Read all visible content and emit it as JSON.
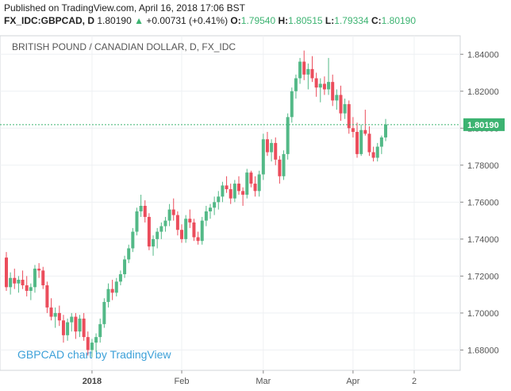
{
  "header": {
    "published": "Published on TradingView.com, April 16, 2018 17:06 BST",
    "symbol": "FX_IDC:GBPCAD, D",
    "last": "1.80190",
    "arrow": "▲",
    "change": "+0.00731 (+0.41%)",
    "o_label": "O:",
    "o_value": "1.79540",
    "h_label": "H:",
    "h_value": "1.80515",
    "l_label": "L:",
    "l_value": "1.79334",
    "c_label": "C:",
    "c_value": "1.80190"
  },
  "chart_data": {
    "type": "candlestick",
    "title": "BRITISH POUND / CANADIAN DOLLAR, D, FX_IDC",
    "watermark": "GBPCAD chart by TradingView",
    "last_price": 1.8019,
    "last_price_label": "1.80190",
    "y_ticks": [
      "1.84000",
      "1.82000",
      "1.80000",
      "1.78000",
      "1.76000",
      "1.74000",
      "1.72000",
      "1.70000",
      "1.68000"
    ],
    "y_tick_values": [
      1.84,
      1.82,
      1.8,
      1.78,
      1.76,
      1.74,
      1.72,
      1.7,
      1.68
    ],
    "ylim": [
      1.669,
      1.85
    ],
    "x_ticks": [
      {
        "label": "2018",
        "index": 21,
        "bold": true
      },
      {
        "label": "Feb",
        "index": 43,
        "bold": false
      },
      {
        "label": "Mar",
        "index": 63,
        "bold": false
      },
      {
        "label": "Apr",
        "index": 85,
        "bold": false
      },
      {
        "label": "2",
        "index": 100,
        "bold": false
      }
    ],
    "colors": {
      "up": "#53b987",
      "down": "#eb4d5c",
      "grid": "#eef0f3",
      "axis": "#d0d4d9",
      "last_line": "#3cb371"
    },
    "candles": [
      [
        1.73,
        1.733,
        1.712,
        1.714
      ],
      [
        1.714,
        1.722,
        1.71,
        1.719
      ],
      [
        1.719,
        1.724,
        1.713,
        1.716
      ],
      [
        1.716,
        1.72,
        1.711,
        1.718
      ],
      [
        1.718,
        1.723,
        1.713,
        1.715
      ],
      [
        1.715,
        1.72,
        1.709,
        1.712
      ],
      [
        1.712,
        1.716,
        1.707,
        1.714
      ],
      [
        1.714,
        1.726,
        1.711,
        1.724
      ],
      [
        1.724,
        1.727,
        1.719,
        1.723
      ],
      [
        1.723,
        1.725,
        1.713,
        1.715
      ],
      [
        1.715,
        1.717,
        1.7,
        1.703
      ],
      [
        1.703,
        1.708,
        1.696,
        1.698
      ],
      [
        1.698,
        1.703,
        1.692,
        1.7
      ],
      [
        1.7,
        1.704,
        1.693,
        1.696
      ],
      [
        1.696,
        1.699,
        1.684,
        1.688
      ],
      [
        1.688,
        1.697,
        1.685,
        1.695
      ],
      [
        1.695,
        1.7,
        1.69,
        1.698
      ],
      [
        1.698,
        1.7,
        1.686,
        1.69
      ],
      [
        1.69,
        1.699,
        1.687,
        1.697
      ],
      [
        1.697,
        1.7,
        1.685,
        1.687
      ],
      [
        1.687,
        1.69,
        1.677,
        1.68
      ],
      [
        1.68,
        1.686,
        1.676,
        1.684
      ],
      [
        1.684,
        1.689,
        1.679,
        1.687
      ],
      [
        1.687,
        1.697,
        1.684,
        1.694
      ],
      [
        1.694,
        1.708,
        1.692,
        1.706
      ],
      [
        1.706,
        1.716,
        1.703,
        1.713
      ],
      [
        1.713,
        1.718,
        1.707,
        1.711
      ],
      [
        1.711,
        1.719,
        1.709,
        1.717
      ],
      [
        1.717,
        1.723,
        1.715,
        1.721
      ],
      [
        1.721,
        1.731,
        1.719,
        1.729
      ],
      [
        1.729,
        1.737,
        1.727,
        1.735
      ],
      [
        1.735,
        1.746,
        1.733,
        1.744
      ],
      [
        1.744,
        1.757,
        1.742,
        1.755
      ],
      [
        1.755,
        1.764,
        1.752,
        1.758
      ],
      [
        1.758,
        1.761,
        1.749,
        1.752
      ],
      [
        1.752,
        1.754,
        1.734,
        1.736
      ],
      [
        1.736,
        1.742,
        1.731,
        1.74
      ],
      [
        1.74,
        1.746,
        1.735,
        1.744
      ],
      [
        1.744,
        1.749,
        1.74,
        1.747
      ],
      [
        1.747,
        1.752,
        1.744,
        1.75
      ],
      [
        1.75,
        1.759,
        1.747,
        1.756
      ],
      [
        1.756,
        1.762,
        1.75,
        1.753
      ],
      [
        1.753,
        1.755,
        1.742,
        1.745
      ],
      [
        1.745,
        1.748,
        1.738,
        1.74
      ],
      [
        1.74,
        1.753,
        1.738,
        1.751
      ],
      [
        1.751,
        1.756,
        1.746,
        1.749
      ],
      [
        1.749,
        1.751,
        1.739,
        1.741
      ],
      [
        1.741,
        1.744,
        1.737,
        1.739
      ],
      [
        1.739,
        1.752,
        1.737,
        1.75
      ],
      [
        1.75,
        1.758,
        1.747,
        1.755
      ],
      [
        1.755,
        1.759,
        1.751,
        1.757
      ],
      [
        1.757,
        1.763,
        1.753,
        1.76
      ],
      [
        1.76,
        1.766,
        1.756,
        1.763
      ],
      [
        1.763,
        1.771,
        1.76,
        1.769
      ],
      [
        1.769,
        1.774,
        1.765,
        1.767
      ],
      [
        1.767,
        1.77,
        1.759,
        1.762
      ],
      [
        1.762,
        1.772,
        1.76,
        1.77
      ],
      [
        1.77,
        1.774,
        1.764,
        1.766
      ],
      [
        1.766,
        1.768,
        1.758,
        1.764
      ],
      [
        1.764,
        1.778,
        1.762,
        1.776
      ],
      [
        1.776,
        1.777,
        1.768,
        1.77
      ],
      [
        1.77,
        1.774,
        1.763,
        1.766
      ],
      [
        1.766,
        1.777,
        1.763,
        1.775
      ],
      [
        1.775,
        1.797,
        1.772,
        1.794
      ],
      [
        1.794,
        1.798,
        1.785,
        1.787
      ],
      [
        1.787,
        1.794,
        1.782,
        1.792
      ],
      [
        1.792,
        1.795,
        1.78,
        1.783
      ],
      [
        1.783,
        1.785,
        1.77,
        1.774
      ],
      [
        1.774,
        1.788,
        1.772,
        1.786
      ],
      [
        1.786,
        1.808,
        1.783,
        1.806
      ],
      [
        1.806,
        1.822,
        1.803,
        1.82
      ],
      [
        1.82,
        1.829,
        1.816,
        1.827
      ],
      [
        1.827,
        1.838,
        1.824,
        1.836
      ],
      [
        1.836,
        1.842,
        1.826,
        1.829
      ],
      [
        1.829,
        1.835,
        1.821,
        1.832
      ],
      [
        1.832,
        1.839,
        1.825,
        1.827
      ],
      [
        1.827,
        1.83,
        1.817,
        1.822
      ],
      [
        1.822,
        1.827,
        1.814,
        1.824
      ],
      [
        1.824,
        1.828,
        1.818,
        1.821
      ],
      [
        1.821,
        1.838,
        1.818,
        1.825
      ],
      [
        1.825,
        1.829,
        1.812,
        1.815
      ],
      [
        1.815,
        1.821,
        1.81,
        1.818
      ],
      [
        1.818,
        1.823,
        1.804,
        1.808
      ],
      [
        1.808,
        1.816,
        1.805,
        1.813
      ],
      [
        1.813,
        1.815,
        1.797,
        1.8
      ],
      [
        1.8,
        1.806,
        1.795,
        1.798
      ],
      [
        1.798,
        1.803,
        1.784,
        1.786
      ],
      [
        1.786,
        1.802,
        1.785,
        1.799
      ],
      [
        1.799,
        1.81,
        1.796,
        1.797
      ],
      [
        1.797,
        1.801,
        1.785,
        1.787
      ],
      [
        1.787,
        1.79,
        1.782,
        1.784
      ],
      [
        1.784,
        1.792,
        1.782,
        1.79
      ],
      [
        1.79,
        1.796,
        1.786,
        1.795
      ],
      [
        1.795,
        1.805,
        1.793,
        1.802
      ]
    ]
  }
}
